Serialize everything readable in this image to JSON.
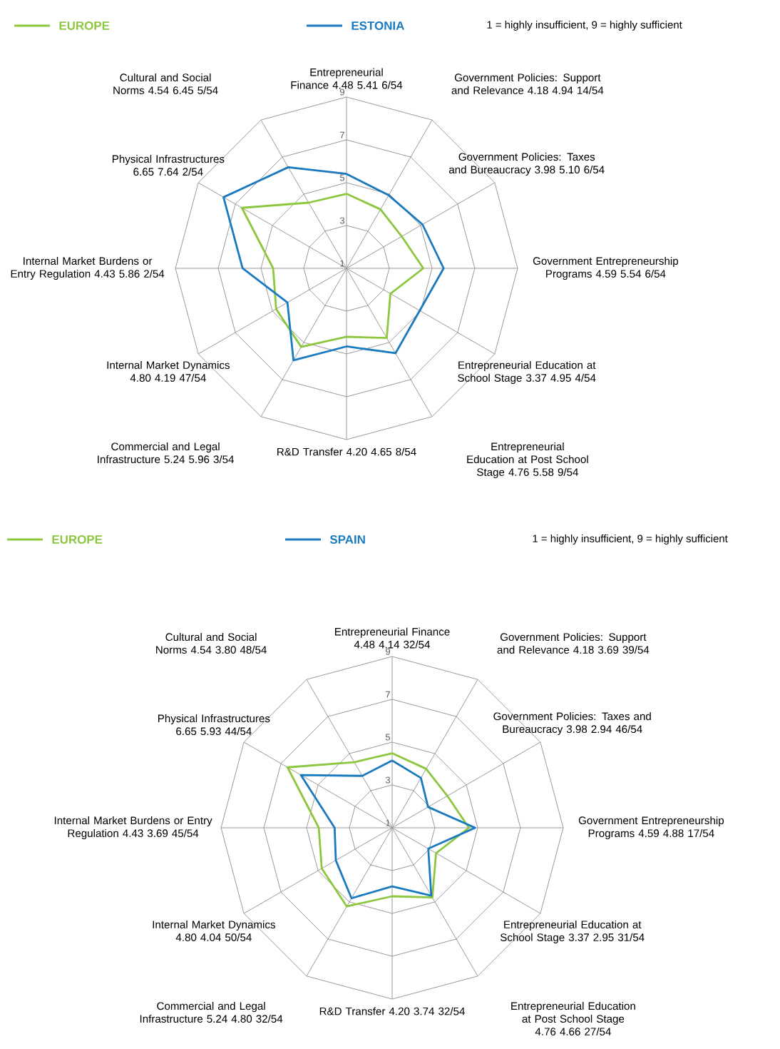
{
  "chart_data": [
    {
      "type": "radar",
      "categories": [
        "Entrepreneurial Finance 4.48 5.41 6/54",
        "Government Policies: Support and Relevance 4.18 4.94 14/54",
        "Government Policies: Taxes and Bureaucracy 3.98 5.10 6/54",
        "Government Entrepreneurship Programs 4.59 5.54 6/54",
        "Entrepreneurial Education at School Stage 3.37 4.95 4/54",
        "Entrepreneurial Education at Post School Stage 4.76 5.58 9/54",
        "R&D Transfer 4.20 4.65 8/54",
        "Commercial and Legal Infrastructure 5.24 5.96 3/54",
        "Internal Market Dynamics 4.80 4.19 47/54",
        "Internal Market Burdens or Entry Regulation 4.43 5.86 2/54",
        "Physical Infrastructures 6.65 7.64 2/54",
        "Cultural and Social Norms 4.54 6.45 5/54"
      ],
      "series": [
        {
          "name": "EUROPE",
          "color": "#8dc63f",
          "values": [
            4.48,
            4.18,
            3.98,
            4.59,
            3.37,
            4.76,
            4.2,
            5.24,
            4.8,
            4.43,
            6.65,
            4.54
          ]
        },
        {
          "name": "ESTONIA",
          "color": "#1a7abf",
          "values": [
            5.41,
            4.94,
            5.1,
            5.54,
            4.95,
            5.58,
            4.65,
            5.96,
            4.19,
            5.86,
            7.64,
            6.45
          ]
        }
      ],
      "ylim": [
        1,
        9
      ],
      "yticks": [
        1,
        3,
        5,
        7,
        9
      ],
      "grid": true,
      "legend": "top",
      "annotations": [
        "1 = highly insufficient, 9 = highly sufficient"
      ]
    },
    {
      "type": "radar",
      "categories": [
        "Entrepreneurial Finance 4.48 4.14 32/54",
        "Government Policies: Support and Relevance 4.18 3.69 39/54",
        "Government Policies: Taxes and Bureaucracy 3.98 2.94 46/54",
        "Government Entrepreneurship Programs 4.59 4.88 17/54",
        "Entrepreneurial Education at School Stage 3.37 2.95 31/54",
        "Entrepreneurial Education at Post School Stage 4.76 4.66 27/54",
        "R&D Transfer 4.20 3.74 32/54",
        "Commercial and Legal Infrastructure 5.24 4.80 32/54",
        "Internal Market Dynamics 4.80 4.04 50/54",
        "Internal Market Burdens or Entry Regulation 4.43 3.69 45/54",
        "Physical Infrastructures 6.65 5.93 44/54",
        "Cultural and Social Norms 4.54 3.80 48/54"
      ],
      "series": [
        {
          "name": "EUROPE",
          "color": "#8dc63f",
          "values": [
            4.48,
            4.18,
            3.98,
            4.59,
            3.37,
            4.76,
            4.2,
            5.24,
            4.8,
            4.43,
            6.65,
            4.54
          ]
        },
        {
          "name": "SPAIN",
          "color": "#1a7abf",
          "values": [
            4.14,
            3.69,
            2.94,
            4.88,
            2.95,
            4.66,
            3.74,
            4.8,
            4.04,
            3.69,
            5.93,
            3.8
          ]
        }
      ],
      "ylim": [
        1,
        9
      ],
      "yticks": [
        1,
        3,
        5,
        7,
        9
      ],
      "grid": true,
      "legend": "top",
      "annotations": [
        "1 = highly insufficient, 9 = highly sufficient"
      ]
    }
  ]
}
